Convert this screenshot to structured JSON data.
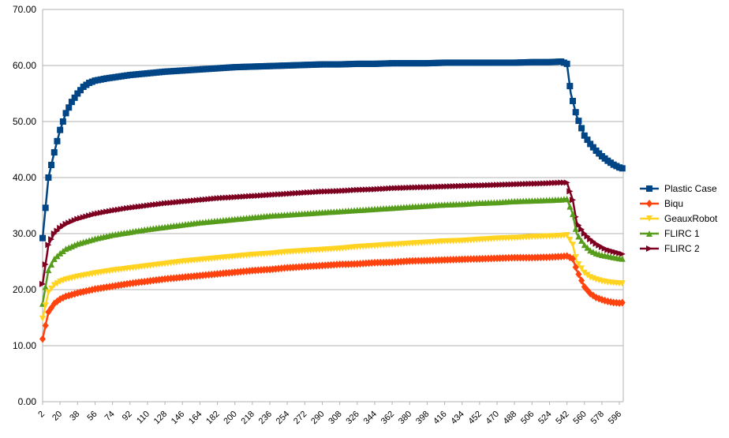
{
  "chart_data": {
    "type": "line",
    "title": "",
    "xlabel": "",
    "ylabel": "",
    "ylim": [
      0,
      70
    ],
    "y_ticks": [
      "0.00",
      "10.00",
      "20.00",
      "30.00",
      "40.00",
      "50.00",
      "60.00",
      "70.00"
    ],
    "x_tick_labels": [
      "2",
      "20",
      "38",
      "56",
      "74",
      "92",
      "110",
      "128",
      "146",
      "164",
      "182",
      "200",
      "218",
      "236",
      "254",
      "272",
      "290",
      "308",
      "326",
      "344",
      "362",
      "380",
      "398",
      "416",
      "434",
      "452",
      "470",
      "488",
      "506",
      "524",
      "542",
      "560",
      "578",
      "596"
    ],
    "x_range": [
      2,
      600
    ],
    "grid": "horizontal",
    "legend_position": "right",
    "series": [
      {
        "name": "Plastic Case",
        "color": "#004586",
        "marker": "square",
        "x": [
          2,
          8,
          14,
          20,
          26,
          32,
          38,
          44,
          50,
          56,
          68,
          80,
          92,
          110,
          128,
          146,
          164,
          182,
          200,
          218,
          236,
          254,
          272,
          290,
          308,
          326,
          344,
          362,
          380,
          398,
          416,
          434,
          452,
          470,
          488,
          506,
          524,
          536,
          542,
          546,
          552,
          560,
          566,
          572,
          578,
          584,
          590,
          596,
          600
        ],
        "y": [
          29.2,
          40.0,
          44.5,
          48.5,
          51.5,
          53.5,
          55.0,
          56.2,
          56.9,
          57.3,
          57.7,
          58.0,
          58.3,
          58.6,
          58.9,
          59.1,
          59.3,
          59.5,
          59.7,
          59.8,
          59.9,
          60.0,
          60.1,
          60.2,
          60.2,
          60.3,
          60.3,
          60.4,
          60.4,
          60.4,
          60.5,
          60.5,
          60.5,
          60.5,
          60.5,
          60.6,
          60.6,
          60.7,
          60.3,
          55.0,
          51.0,
          47.5,
          46.0,
          44.8,
          43.8,
          43.0,
          42.3,
          41.8,
          41.6
        ]
      },
      {
        "name": "Biqu",
        "color": "#ff420e",
        "marker": "diamond",
        "x": [
          2,
          8,
          14,
          20,
          26,
          38,
          56,
          74,
          92,
          110,
          128,
          146,
          164,
          182,
          200,
          218,
          236,
          254,
          272,
          290,
          308,
          326,
          344,
          362,
          380,
          398,
          416,
          434,
          452,
          470,
          488,
          506,
          524,
          536,
          542,
          548,
          552,
          560,
          566,
          572,
          578,
          584,
          590,
          596,
          600
        ],
        "y": [
          11.2,
          16.0,
          17.5,
          18.3,
          18.8,
          19.4,
          20.1,
          20.6,
          21.1,
          21.5,
          21.9,
          22.2,
          22.5,
          22.8,
          23.1,
          23.4,
          23.6,
          23.9,
          24.1,
          24.3,
          24.5,
          24.6,
          24.8,
          24.9,
          25.1,
          25.2,
          25.3,
          25.4,
          25.5,
          25.6,
          25.7,
          25.7,
          25.8,
          25.9,
          26.0,
          25.5,
          23.5,
          20.5,
          19.3,
          18.6,
          18.2,
          17.9,
          17.7,
          17.6,
          17.7
        ]
      },
      {
        "name": "GeauxRobot",
        "color": "#ffd320",
        "marker": "triangle-down",
        "x": [
          2,
          8,
          14,
          20,
          26,
          38,
          56,
          74,
          92,
          110,
          128,
          146,
          164,
          182,
          200,
          218,
          236,
          254,
          272,
          290,
          308,
          326,
          344,
          362,
          380,
          398,
          416,
          434,
          452,
          470,
          488,
          506,
          524,
          536,
          542,
          548,
          552,
          560,
          566,
          572,
          578,
          584,
          590,
          596,
          600
        ],
        "y": [
          14.8,
          19.5,
          20.8,
          21.4,
          21.8,
          22.3,
          22.9,
          23.4,
          23.8,
          24.2,
          24.6,
          25.0,
          25.3,
          25.6,
          25.9,
          26.2,
          26.4,
          26.7,
          26.9,
          27.1,
          27.3,
          27.6,
          27.8,
          28.0,
          28.2,
          28.4,
          28.6,
          28.7,
          28.9,
          29.1,
          29.2,
          29.4,
          29.5,
          29.6,
          29.7,
          28.0,
          25.0,
          23.0,
          22.2,
          21.8,
          21.5,
          21.3,
          21.2,
          21.1,
          21.1
        ]
      },
      {
        "name": "FLIRC 1",
        "color": "#579d1c",
        "marker": "triangle-up",
        "x": [
          2,
          8,
          14,
          20,
          26,
          38,
          56,
          74,
          92,
          110,
          128,
          146,
          164,
          182,
          200,
          218,
          236,
          254,
          272,
          290,
          308,
          326,
          344,
          362,
          380,
          398,
          416,
          434,
          452,
          470,
          488,
          506,
          524,
          536,
          542,
          548,
          552,
          560,
          566,
          572,
          578,
          584,
          590,
          596,
          600
        ],
        "y": [
          17.5,
          23.5,
          25.5,
          26.5,
          27.3,
          28.2,
          29.1,
          29.8,
          30.3,
          30.8,
          31.2,
          31.6,
          32.0,
          32.3,
          32.6,
          32.9,
          33.2,
          33.4,
          33.6,
          33.8,
          34.0,
          34.2,
          34.4,
          34.6,
          34.8,
          35.0,
          35.2,
          35.3,
          35.5,
          35.6,
          35.8,
          35.9,
          36.0,
          36.1,
          36.2,
          33.5,
          30.0,
          28.0,
          27.0,
          26.5,
          26.2,
          26.0,
          25.8,
          25.6,
          25.5
        ]
      },
      {
        "name": "FLIRC 2",
        "color": "#7e0021",
        "marker": "triangle-right",
        "x": [
          2,
          8,
          14,
          20,
          26,
          38,
          56,
          74,
          92,
          110,
          128,
          146,
          164,
          182,
          200,
          218,
          236,
          254,
          272,
          290,
          308,
          326,
          344,
          362,
          380,
          398,
          416,
          434,
          452,
          470,
          488,
          506,
          524,
          536,
          542,
          548,
          552,
          560,
          566,
          572,
          578,
          584,
          590,
          596,
          600
        ],
        "y": [
          21.0,
          28.0,
          30.0,
          31.0,
          31.7,
          32.6,
          33.5,
          34.1,
          34.6,
          35.0,
          35.4,
          35.7,
          36.0,
          36.3,
          36.5,
          36.7,
          36.9,
          37.1,
          37.3,
          37.5,
          37.6,
          37.8,
          37.9,
          38.1,
          38.2,
          38.3,
          38.4,
          38.5,
          38.6,
          38.7,
          38.8,
          38.9,
          39.0,
          39.1,
          39.1,
          36.0,
          32.0,
          30.0,
          29.0,
          28.2,
          27.6,
          27.1,
          26.8,
          26.5,
          26.3
        ]
      }
    ]
  }
}
